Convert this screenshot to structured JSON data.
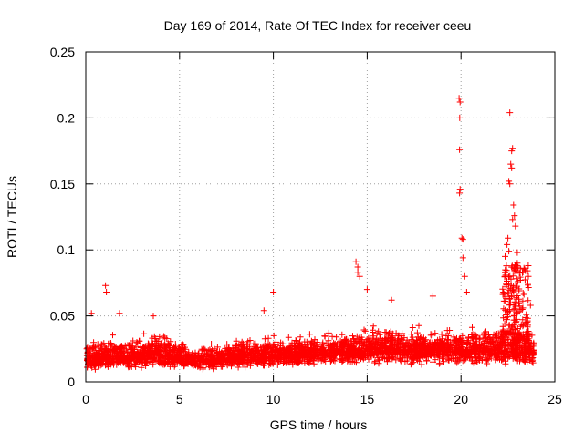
{
  "chart_data": {
    "type": "scatter",
    "title": "Day 169 of 2014, Rate Of TEC Index for receiver ceeu",
    "xlabel": "GPS time / hours",
    "ylabel": "ROTI / TECUs",
    "xlim": [
      0,
      25
    ],
    "ylim": [
      0,
      0.25
    ],
    "x_ticks": [
      0,
      5,
      10,
      15,
      20,
      25
    ],
    "x_tick_labels": [
      "0",
      "5",
      "10",
      "15",
      "20",
      "25"
    ],
    "y_ticks": [
      0,
      0.05,
      0.1,
      0.15,
      0.2,
      0.25
    ],
    "y_tick_labels": [
      "0",
      "0.05",
      "0.1",
      "0.15",
      "0.2",
      "0.25"
    ],
    "grid": true,
    "marker": "+",
    "marker_color": "#ff0000",
    "series": [
      {
        "name": "ROTI",
        "baseline_profile": {
          "description_hours": [
            0,
            2,
            4,
            6,
            8,
            10,
            12,
            14,
            16,
            18,
            20,
            22,
            24
          ],
          "typical_range_note": "dense band of points",
          "low": [
            0.008,
            0.008,
            0.009,
            0.008,
            0.009,
            0.01,
            0.011,
            0.012,
            0.012,
            0.012,
            0.012,
            0.012,
            0.012
          ],
          "high": [
            0.035,
            0.04,
            0.045,
            0.03,
            0.04,
            0.04,
            0.04,
            0.045,
            0.05,
            0.045,
            0.045,
            0.05,
            0.045
          ]
        },
        "outliers": [
          {
            "x": 0.3,
            "y": 0.052
          },
          {
            "x": 1.05,
            "y": 0.073
          },
          {
            "x": 1.1,
            "y": 0.068
          },
          {
            "x": 1.8,
            "y": 0.052
          },
          {
            "x": 3.6,
            "y": 0.05
          },
          {
            "x": 10.0,
            "y": 0.068
          },
          {
            "x": 9.5,
            "y": 0.054
          },
          {
            "x": 14.4,
            "y": 0.091
          },
          {
            "x": 14.5,
            "y": 0.087
          },
          {
            "x": 14.5,
            "y": 0.083
          },
          {
            "x": 14.6,
            "y": 0.08
          },
          {
            "x": 15.0,
            "y": 0.07
          },
          {
            "x": 16.3,
            "y": 0.062
          },
          {
            "x": 18.5,
            "y": 0.065
          },
          {
            "x": 19.9,
            "y": 0.215
          },
          {
            "x": 19.95,
            "y": 0.212
          },
          {
            "x": 19.93,
            "y": 0.2
          },
          {
            "x": 19.92,
            "y": 0.176
          },
          {
            "x": 19.95,
            "y": 0.146
          },
          {
            "x": 19.92,
            "y": 0.143
          },
          {
            "x": 20.05,
            "y": 0.109
          },
          {
            "x": 20.1,
            "y": 0.108
          },
          {
            "x": 20.1,
            "y": 0.094
          },
          {
            "x": 20.2,
            "y": 0.08
          },
          {
            "x": 20.3,
            "y": 0.068
          },
          {
            "x": 22.6,
            "y": 0.204
          },
          {
            "x": 22.75,
            "y": 0.177
          },
          {
            "x": 22.7,
            "y": 0.175
          },
          {
            "x": 22.65,
            "y": 0.165
          },
          {
            "x": 22.7,
            "y": 0.162
          },
          {
            "x": 22.55,
            "y": 0.152
          },
          {
            "x": 22.6,
            "y": 0.15
          },
          {
            "x": 22.8,
            "y": 0.134
          },
          {
            "x": 22.85,
            "y": 0.126
          },
          {
            "x": 22.75,
            "y": 0.123
          },
          {
            "x": 22.9,
            "y": 0.118
          },
          {
            "x": 22.5,
            "y": 0.109
          },
          {
            "x": 22.45,
            "y": 0.104
          },
          {
            "x": 22.55,
            "y": 0.099
          },
          {
            "x": 22.35,
            "y": 0.095
          },
          {
            "x": 23.0,
            "y": 0.098
          },
          {
            "x": 23.0,
            "y": 0.09
          },
          {
            "x": 22.9,
            "y": 0.086
          },
          {
            "x": 22.6,
            "y": 0.08
          },
          {
            "x": 22.4,
            "y": 0.072
          },
          {
            "x": 22.7,
            "y": 0.065
          },
          {
            "x": 23.1,
            "y": 0.06
          },
          {
            "x": 23.7,
            "y": 0.058
          }
        ]
      }
    ]
  }
}
